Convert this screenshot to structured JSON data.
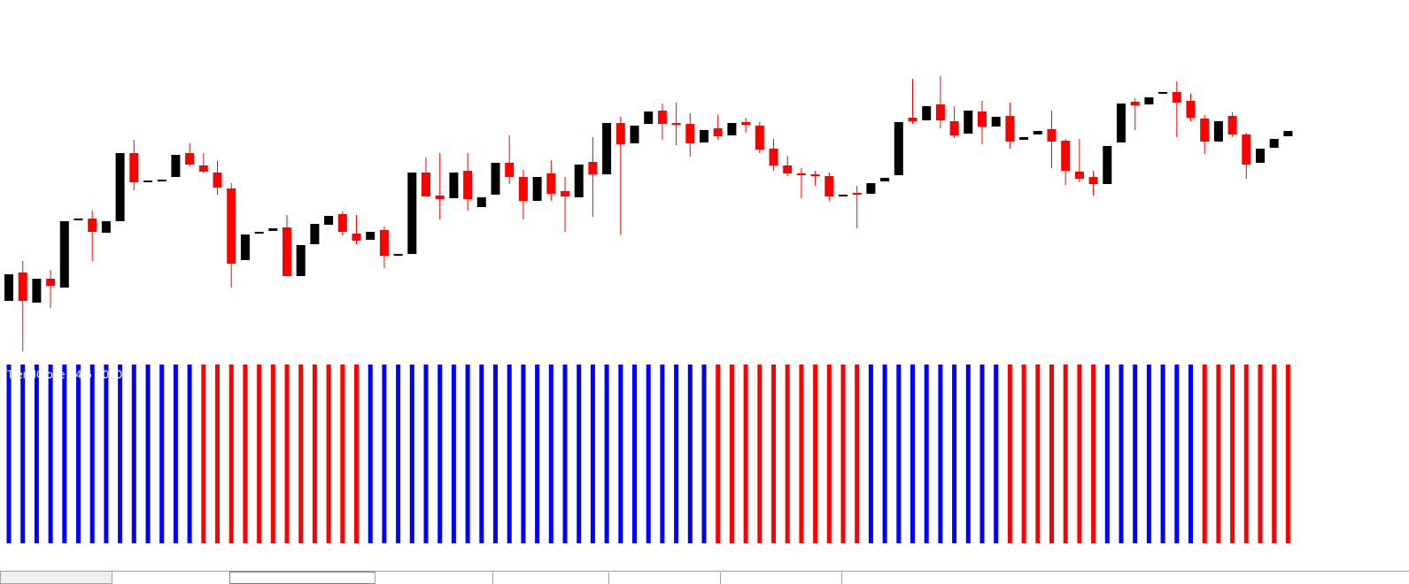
{
  "chart_data": [
    {
      "type": "candlestick",
      "open": [
        60,
        92,
        58,
        85,
        75,
        151,
        153,
        137,
        150,
        227,
        195,
        196,
        200,
        227,
        213,
        205,
        187,
        106,
        138,
        139,
        143,
        88,
        124,
        146,
        158,
        136,
        129,
        140,
        112,
        113,
        205,
        179,
        176,
        207,
        166,
        180,
        216,
        200,
        173,
        204,
        184,
        177,
        217,
        203,
        261,
        238,
        260,
        275,
        261,
        260,
        239,
        255,
        247,
        262,
        258,
        232,
        213,
        204,
        203,
        201,
        180,
        182,
        181,
        195,
        202,
        267,
        264,
        282,
        263,
        249,
        274,
        257,
        269,
        242,
        248,
        254,
        241,
        206,
        200,
        192,
        239,
        285,
        282,
        295,
        296,
        286,
        266,
        240,
        269,
        248,
        216,
        233,
        246
      ],
      "high": [
        90,
        105,
        85,
        95,
        150,
        153,
        162,
        150,
        227,
        242,
        196,
        197,
        225,
        238,
        227,
        218,
        193,
        135,
        138,
        142,
        157,
        123,
        147,
        156,
        161,
        157,
        138,
        144,
        113,
        205,
        222,
        227,
        205,
        227,
        177,
        216,
        247,
        208,
        200,
        219,
        200,
        214,
        245,
        261,
        268,
        258,
        274,
        283,
        284,
        272,
        253,
        270,
        261,
        267,
        262,
        243,
        224,
        210,
        207,
        205,
        180,
        190,
        193,
        199,
        262,
        311,
        280,
        314,
        280,
        275,
        286,
        268,
        284,
        245,
        252,
        275,
        243,
        243,
        207,
        235,
        283,
        289,
        290,
        296,
        308,
        294,
        270,
        263,
        273,
        250,
        232,
        243,
        252
      ],
      "low": [
        60,
        3,
        58,
        52,
        75,
        151,
        105,
        137,
        150,
        185,
        195,
        196,
        200,
        212,
        204,
        180,
        75,
        106,
        138,
        139,
        88,
        88,
        124,
        146,
        134,
        124,
        129,
        97,
        112,
        113,
        178,
        152,
        176,
        162,
        166,
        180,
        192,
        152,
        173,
        173,
        138,
        177,
        155,
        203,
        135,
        238,
        260,
        242,
        236,
        223,
        239,
        242,
        247,
        250,
        227,
        207,
        201,
        176,
        190,
        173,
        180,
        142,
        181,
        195,
        202,
        260,
        264,
        255,
        244,
        249,
        237,
        257,
        232,
        242,
        248,
        210,
        191,
        194,
        179,
        192,
        239,
        253,
        282,
        295,
        245,
        263,
        226,
        240,
        245,
        198,
        216,
        233,
        246
      ],
      "close": [
        90,
        60,
        85,
        77,
        150,
        153,
        138,
        150,
        227,
        194,
        196,
        197,
        225,
        214,
        206,
        188,
        102,
        135,
        138,
        142,
        88,
        123,
        147,
        156,
        138,
        128,
        138,
        111,
        113,
        205,
        178,
        175,
        205,
        175,
        177,
        216,
        200,
        173,
        200,
        181,
        178,
        214,
        203,
        261,
        237,
        258,
        274,
        260,
        260,
        238,
        253,
        246,
        261,
        259,
        231,
        213,
        204,
        203,
        202,
        178,
        180,
        181,
        193,
        199,
        262,
        263,
        280,
        264,
        247,
        275,
        257,
        268,
        240,
        245,
        252,
        240,
        207,
        198,
        192,
        235,
        283,
        281,
        290,
        296,
        284,
        267,
        240,
        263,
        248,
        214,
        232,
        243,
        252
      ],
      "up_color": "#000000",
      "down_color": "#ff0000",
      "ylim": [
        0,
        400
      ]
    },
    {
      "type": "bar",
      "label": "TrendClose 14 5 10000",
      "values": [
        1,
        1,
        1,
        1,
        1,
        1,
        1,
        1,
        1,
        1,
        1,
        1,
        1,
        1,
        1,
        1,
        1,
        1,
        1,
        1,
        1,
        1,
        1,
        1,
        1,
        1,
        1,
        1,
        1,
        1,
        1,
        1,
        1,
        1,
        1,
        1,
        1,
        1,
        1,
        1,
        1,
        1,
        1,
        1,
        1,
        1,
        1,
        1,
        1,
        1,
        1,
        1,
        1,
        1,
        1,
        1,
        1,
        1,
        1,
        1,
        1,
        1,
        1,
        1,
        1,
        1,
        1,
        1,
        1,
        1,
        1,
        1,
        1,
        1,
        1,
        1,
        1,
        1,
        1,
        1,
        1,
        1,
        1,
        1,
        1,
        1,
        1,
        1,
        1,
        1,
        1,
        1,
        1
      ],
      "colors": [
        "#0000ff",
        "#0000ff",
        "#0000ff",
        "#0000ff",
        "#0000ff",
        "#0000ff",
        "#0000ff",
        "#0000ff",
        "#0000ff",
        "#0000ff",
        "#0000ff",
        "#0000ff",
        "#0000ff",
        "#0000ff",
        "#ff0000",
        "#ff0000",
        "#ff0000",
        "#ff0000",
        "#ff0000",
        "#ff0000",
        "#ff0000",
        "#ff0000",
        "#ff0000",
        "#ff0000",
        "#ff0000",
        "#ff0000",
        "#0000ff",
        "#0000ff",
        "#0000ff",
        "#0000ff",
        "#0000ff",
        "#0000ff",
        "#0000ff",
        "#0000ff",
        "#0000ff",
        "#0000ff",
        "#0000ff",
        "#0000ff",
        "#0000ff",
        "#0000ff",
        "#0000ff",
        "#0000ff",
        "#0000ff",
        "#0000ff",
        "#0000ff",
        "#0000ff",
        "#0000ff",
        "#0000ff",
        "#0000ff",
        "#0000ff",
        "#0000ff",
        "#ff0000",
        "#ff0000",
        "#ff0000",
        "#ff0000",
        "#ff0000",
        "#ff0000",
        "#ff0000",
        "#ff0000",
        "#ff0000",
        "#ff0000",
        "#ff0000",
        "#0000ff",
        "#0000ff",
        "#0000ff",
        "#0000ff",
        "#0000ff",
        "#0000ff",
        "#0000ff",
        "#0000ff",
        "#0000ff",
        "#0000ff",
        "#ff0000",
        "#ff0000",
        "#ff0000",
        "#ff0000",
        "#ff0000",
        "#ff0000",
        "#ff0000",
        "#0000ff",
        "#0000ff",
        "#0000ff",
        "#0000ff",
        "#0000ff",
        "#0000ff",
        "#0000ff",
        "#ff0000",
        "#ff0000",
        "#ff0000",
        "#ff0000",
        "#ff0000",
        "#ff0000",
        "#ff0000"
      ],
      "ylim": [
        0,
        1
      ]
    }
  ]
}
